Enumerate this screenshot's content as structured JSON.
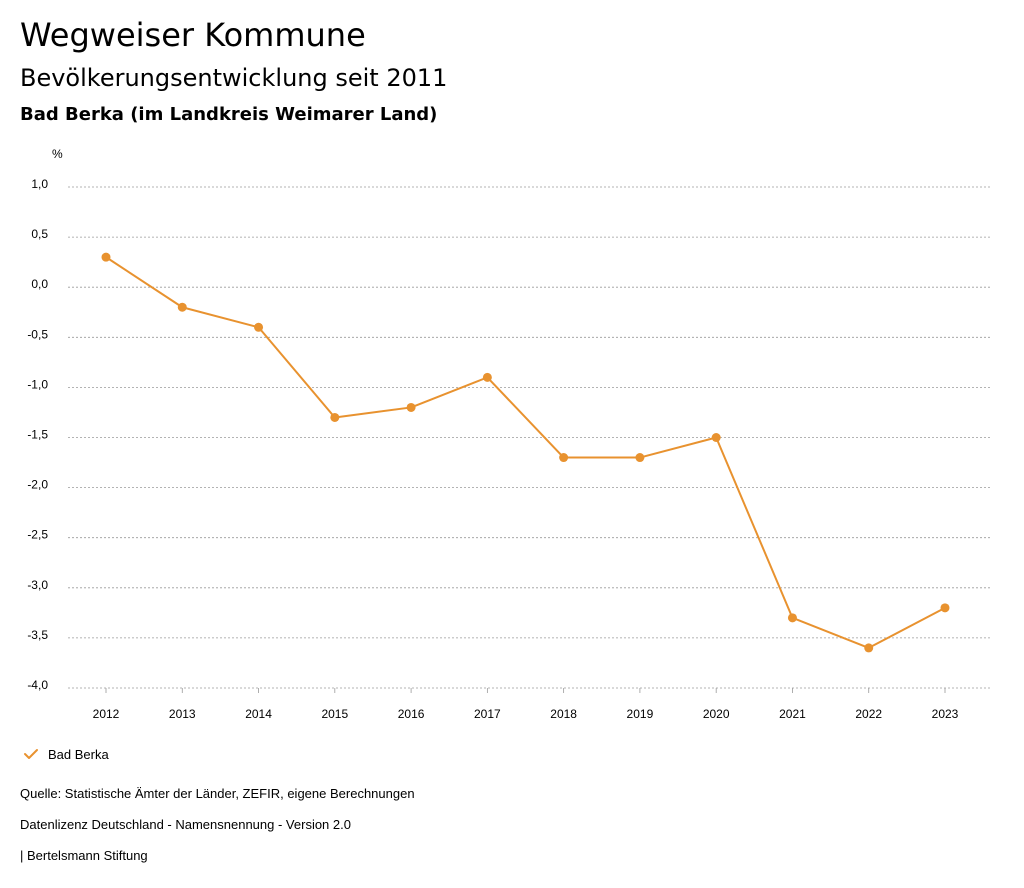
{
  "header": {
    "title": "Wegweiser Kommune",
    "subtitle": "Bevölkerungsentwicklung seit 2011",
    "region": "Bad Berka (im Landkreis Weimarer Land)"
  },
  "chart_data": {
    "type": "line",
    "title": "Bevölkerungsentwicklung seit 2011",
    "xlabel": "",
    "ylabel": "%",
    "x": [
      "2012",
      "2013",
      "2014",
      "2015",
      "2016",
      "2017",
      "2018",
      "2019",
      "2020",
      "2021",
      "2022",
      "2023"
    ],
    "series": [
      {
        "name": "Bad Berka",
        "values": [
          0.3,
          -0.2,
          -0.4,
          -1.3,
          -1.2,
          -0.9,
          -1.7,
          -1.7,
          -1.5,
          -3.3,
          -3.6,
          -3.2
        ],
        "color": "#e8922f"
      }
    ],
    "ylim": [
      -4.0,
      1.0
    ],
    "yticks": [
      1.0,
      0.5,
      0.0,
      -0.5,
      -1.0,
      -1.5,
      -2.0,
      -2.5,
      -3.0,
      -3.5,
      -4.0
    ],
    "ytick_labels": [
      "1,0",
      "0,5",
      "0,0",
      "-0,5",
      "-1,0",
      "-1,5",
      "-2,0",
      "-2,5",
      "-3,0",
      "-3,5",
      "-4,0"
    ],
    "grid": true,
    "legend": "bottom-left"
  },
  "legend": {
    "label": "Bad Berka"
  },
  "footer": {
    "source": "Quelle: Statistische Ämter der Länder, ZEFIR, eigene Berechnungen",
    "license": "Datenlizenz Deutschland - Namensnennung - Version 2.0",
    "publisher": "| Bertelsmann Stiftung"
  }
}
